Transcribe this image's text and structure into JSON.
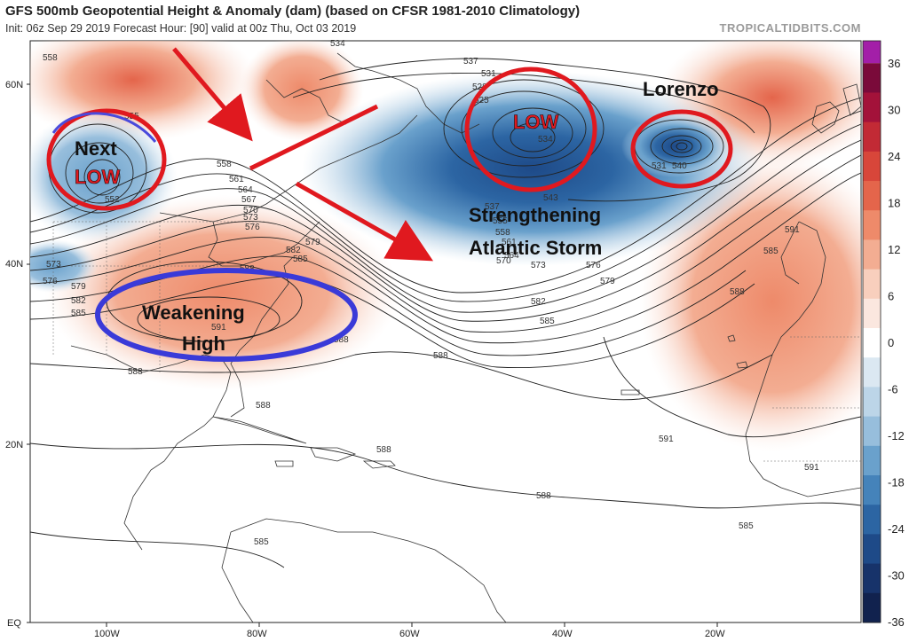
{
  "header": {
    "title": "GFS 500mb Geopotential Height & Anomaly (dam) (based on CFSR 1981-2010 Climatology)",
    "subtitle": "Init: 06z Sep 29 2019   Forecast Hour: [90]   valid at 00z Thu, Oct 03 2019",
    "brand": "TROPICALTIDBITS.COM"
  },
  "axes": {
    "lat_labels": [
      "60N",
      "40N",
      "20N",
      "EQ"
    ],
    "lon_labels": [
      "100W",
      "80W",
      "60W",
      "40W",
      "20W"
    ]
  },
  "colorbar": {
    "ticks": [
      "36",
      "30",
      "24",
      "18",
      "12",
      "6",
      "0",
      "-6",
      "-12",
      "-18",
      "-24",
      "-30",
      "-36"
    ],
    "positive_colors": [
      "#7a0a3a",
      "#a3123a",
      "#c22a35",
      "#d8463a",
      "#e4654b",
      "#ee8a6a",
      "#f3ad92",
      "#f8cfbd",
      "#fbe7df"
    ],
    "negative_colors": [
      "#dbe8f2",
      "#bcd5e8",
      "#97bedc",
      "#6aa1cc",
      "#4583ba",
      "#2c65a3",
      "#1e4a88",
      "#17336a",
      "#11224e"
    ],
    "top_color": "#a31fa8"
  },
  "annotations": {
    "next": "Next",
    "low": "LOW",
    "lorenzo": "Lorenzo",
    "strengthening": "Strengthening",
    "atlantic_storm": "Atlantic Storm",
    "weakening": "Weakening",
    "high": "High",
    "low_center": "LOW"
  },
  "contour_labels": [
    "558",
    "555",
    "552",
    "558",
    "561",
    "564",
    "567",
    "570",
    "573",
    "576",
    "579",
    "582",
    "585",
    "588",
    "591",
    "534",
    "537",
    "531",
    "528",
    "525",
    "534",
    "531",
    "540",
    "543",
    "537",
    "555",
    "558",
    "561",
    "564",
    "570",
    "573",
    "576",
    "579",
    "582",
    "585",
    "588",
    "591",
    "585",
    "588",
    "591",
    "591",
    "588",
    "588",
    "588",
    "585",
    "585",
    "573",
    "576",
    "579",
    "582",
    "585",
    "588",
    "588"
  ]
}
